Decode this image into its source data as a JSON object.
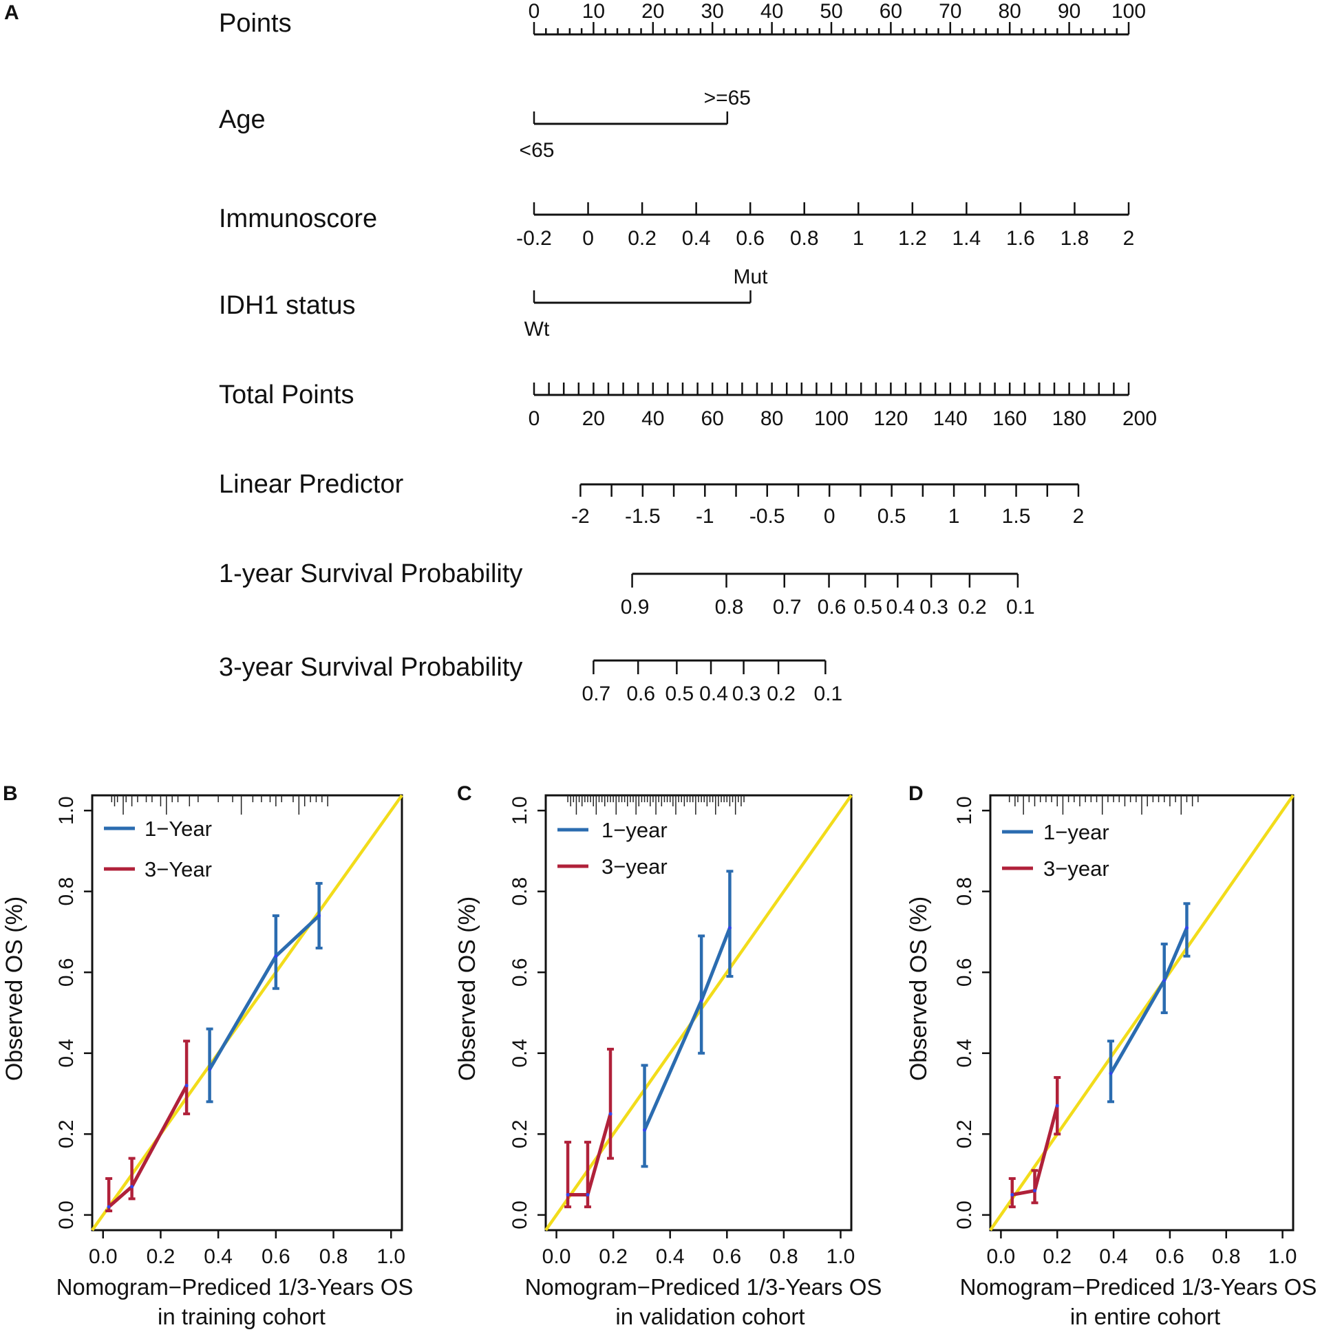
{
  "panel_labels": [
    "A",
    "B",
    "C",
    "D"
  ],
  "colors": {
    "one_year": "#2b6cb0",
    "three_year": "#b0213a",
    "ideal": "#f2dc1b",
    "axis": "#111111"
  },
  "chart_data": [
    {
      "type": "nomogram",
      "panel": "A",
      "rows": [
        {
          "label": "Points",
          "kind": "scale",
          "range": [
            0,
            100
          ],
          "major": [
            0,
            10,
            20,
            30,
            40,
            50,
            60,
            70,
            80,
            90,
            100
          ],
          "minor_step": 2,
          "labels_above": true
        },
        {
          "label": "Age",
          "kind": "categorical",
          "levels": [
            {
              "name": "<65",
              "points": 0
            },
            {
              "name": ">=65",
              "points": 32.5
            }
          ]
        },
        {
          "label": "Immunoscore",
          "kind": "covariate",
          "values": [
            -0.2,
            0,
            0.2,
            0.4,
            0.6,
            0.8,
            1,
            1.2,
            1.4,
            1.6,
            1.8,
            2
          ],
          "value_labels": [
            "-0.2",
            "0",
            "0.2",
            "0.4",
            "0.6",
            "0.8",
            "1",
            "1.2",
            "1.4",
            "1.6",
            "1.8",
            "2"
          ],
          "points_at_min": 0,
          "points_at_max": 100
        },
        {
          "label": "IDH1 status",
          "kind": "categorical",
          "levels": [
            {
              "name": "Wt",
              "points": 0
            },
            {
              "name": "Mut",
              "points": 36.4
            }
          ]
        },
        {
          "label": "Total Points",
          "kind": "total",
          "range": [
            0,
            200
          ],
          "major": [
            0,
            20,
            40,
            60,
            80,
            100,
            120,
            140,
            160,
            180,
            200
          ],
          "minor_step": 5
        },
        {
          "label": "Linear Predictor",
          "kind": "lp",
          "values": [
            -2,
            -1.5,
            -1,
            -0.5,
            0,
            0.5,
            1,
            1.5,
            2
          ],
          "value_labels": [
            "-2",
            "-1.5",
            "-1",
            "-0.5",
            "0",
            "0.5",
            "1",
            "1.5",
            "2"
          ],
          "total_at_min": 15.6,
          "total_at_max": 183.1
        },
        {
          "label": "1-year Survival Probability",
          "kind": "prob",
          "values": [
            0.9,
            0.8,
            0.7,
            0.6,
            0.5,
            0.4,
            0.3,
            0.2,
            0.1
          ],
          "value_labels": [
            "0.9",
            "0.8",
            "0.7",
            "0.6",
            "0.5",
            "0.4",
            "0.3",
            "0.2",
            "0.1"
          ],
          "totals": [
            33.0,
            64.7,
            84.2,
            99.2,
            111.4,
            122.3,
            133.6,
            146.5,
            162.7
          ]
        },
        {
          "label": "3-year Survival Probability",
          "kind": "prob",
          "values": [
            0.7,
            0.6,
            0.5,
            0.4,
            0.3,
            0.2,
            0.1
          ],
          "value_labels": [
            "0.7",
            "0.6",
            "0.5",
            "0.4",
            "0.3",
            "0.2",
            "0.1"
          ],
          "totals": [
            20.0,
            35.0,
            48.0,
            59.5,
            70.5,
            82.2,
            98.0
          ]
        }
      ]
    },
    {
      "type": "calibration",
      "panel": "B",
      "xlabel": "Nomogram−Prediced 1/3-Years OS",
      "xlabel2": "in training cohort",
      "ylabel": "Observed OS (%)",
      "xlim": [
        0,
        1
      ],
      "ylim": [
        0,
        1
      ],
      "x_ticks": [
        "0.0",
        "0.2",
        "0.4",
        "0.6",
        "0.8",
        "1.0"
      ],
      "y_ticks": [
        "0.0",
        "0.2",
        "0.4",
        "0.6",
        "0.8",
        "1.0"
      ],
      "legend": [
        "1−Year",
        "3−Year"
      ],
      "series": [
        {
          "name": "1-Year",
          "x": [
            0.37,
            0.6,
            0.75
          ],
          "y": [
            0.36,
            0.64,
            0.74
          ],
          "lo": [
            0.28,
            0.56,
            0.66
          ],
          "hi": [
            0.46,
            0.74,
            0.82
          ]
        },
        {
          "name": "3-Year",
          "x": [
            0.02,
            0.1,
            0.29
          ],
          "y": [
            0.02,
            0.07,
            0.32
          ],
          "lo": [
            0.01,
            0.04,
            0.25
          ],
          "hi": [
            0.09,
            0.14,
            0.43
          ]
        }
      ],
      "rug": [
        0.03,
        0.04,
        0.05,
        0.07,
        0.08,
        0.1,
        0.12,
        0.15,
        0.17,
        0.2,
        0.22,
        0.24,
        0.26,
        0.3,
        0.33,
        0.4,
        0.45,
        0.48,
        0.52,
        0.55,
        0.58,
        0.6,
        0.62,
        0.66,
        0.68,
        0.7,
        0.72,
        0.74,
        0.76,
        0.78
      ]
    },
    {
      "type": "calibration",
      "panel": "C",
      "xlabel": "Nomogram−Prediced 1/3-Years OS",
      "xlabel2": "in validation cohort",
      "ylabel": "Observed OS (%)",
      "xlim": [
        0,
        1
      ],
      "ylim": [
        0,
        1
      ],
      "x_ticks": [
        "0.0",
        "0.2",
        "0.4",
        "0.6",
        "0.8",
        "1.0"
      ],
      "y_ticks": [
        "0.0",
        "0.2",
        "0.4",
        "0.6",
        "0.8",
        "1.0"
      ],
      "legend": [
        "1−year",
        "3−year"
      ],
      "series": [
        {
          "name": "1-year",
          "x": [
            0.31,
            0.51,
            0.61
          ],
          "y": [
            0.21,
            0.53,
            0.71
          ],
          "lo": [
            0.12,
            0.4,
            0.59
          ],
          "hi": [
            0.37,
            0.69,
            0.85
          ]
        },
        {
          "name": "3-year",
          "x": [
            0.04,
            0.11,
            0.19
          ],
          "y": [
            0.05,
            0.05,
            0.25
          ],
          "lo": [
            0.02,
            0.02,
            0.14
          ],
          "hi": [
            0.18,
            0.18,
            0.41
          ]
        }
      ],
      "rug": [
        0.04,
        0.05,
        0.06,
        0.07,
        0.08,
        0.09,
        0.1,
        0.11,
        0.12,
        0.13,
        0.14,
        0.15,
        0.16,
        0.17,
        0.18,
        0.19,
        0.2,
        0.21,
        0.22,
        0.23,
        0.24,
        0.25,
        0.26,
        0.27,
        0.28,
        0.29,
        0.3,
        0.31,
        0.32,
        0.33,
        0.34,
        0.35,
        0.36,
        0.37,
        0.38,
        0.39,
        0.4,
        0.41,
        0.42,
        0.43,
        0.44,
        0.45,
        0.46,
        0.47,
        0.48,
        0.49,
        0.5,
        0.51,
        0.52,
        0.53,
        0.54,
        0.55,
        0.56,
        0.57,
        0.58,
        0.59,
        0.6,
        0.61,
        0.62,
        0.63,
        0.64,
        0.65,
        0.66
      ]
    },
    {
      "type": "calibration",
      "panel": "D",
      "xlabel": "Nomogram−Prediced 1/3-Years OS",
      "xlabel2": "in entire cohort",
      "ylabel": "Observed OS (%)",
      "xlim": [
        0,
        1
      ],
      "ylim": [
        0,
        1
      ],
      "x_ticks": [
        "0.0",
        "0.2",
        "0.4",
        "0.6",
        "0.8",
        "1.0"
      ],
      "y_ticks": [
        "0.0",
        "0.2",
        "0.4",
        "0.6",
        "0.8",
        "1.0"
      ],
      "legend": [
        "1−year",
        "3−year"
      ],
      "series": [
        {
          "name": "1-year",
          "x": [
            0.39,
            0.58,
            0.66
          ],
          "y": [
            0.35,
            0.58,
            0.71
          ],
          "lo": [
            0.28,
            0.5,
            0.64
          ],
          "hi": [
            0.43,
            0.67,
            0.77
          ]
        },
        {
          "name": "3-year",
          "x": [
            0.04,
            0.12,
            0.2
          ],
          "y": [
            0.05,
            0.06,
            0.27
          ],
          "lo": [
            0.02,
            0.03,
            0.2
          ],
          "hi": [
            0.09,
            0.11,
            0.34
          ]
        }
      ],
      "rug": [
        0.03,
        0.05,
        0.06,
        0.08,
        0.1,
        0.12,
        0.14,
        0.16,
        0.18,
        0.2,
        0.22,
        0.24,
        0.26,
        0.28,
        0.3,
        0.32,
        0.34,
        0.36,
        0.38,
        0.4,
        0.42,
        0.44,
        0.46,
        0.48,
        0.5,
        0.52,
        0.54,
        0.56,
        0.58,
        0.6,
        0.62,
        0.64,
        0.66,
        0.68,
        0.7
      ]
    }
  ]
}
